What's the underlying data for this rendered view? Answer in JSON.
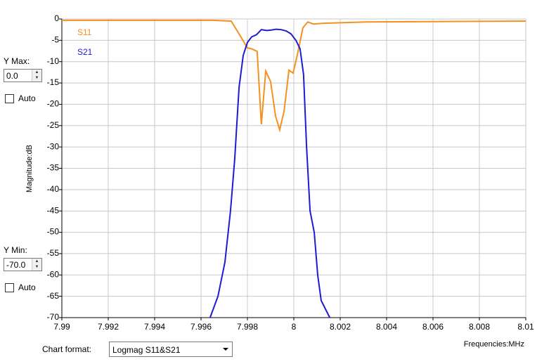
{
  "controls": {
    "ymax_label": "Y Max:",
    "ymax_value": "0.0",
    "ymax_auto": "Auto",
    "ymin_label": "Y Min:",
    "ymin_value": "-70.0",
    "ymin_auto": "Auto",
    "format_label": "Chart format:",
    "format_value": "Logmag S11&S21"
  },
  "chart_data": {
    "type": "line",
    "ylabel": "Magnitude:dB",
    "xlabel": "Frequencies:MHz",
    "xlim": [
      7.99,
      8.01
    ],
    "xticks": [
      7.99,
      7.992,
      7.994,
      7.996,
      7.998,
      8,
      8.002,
      8.004,
      8.006,
      8.008,
      8.01
    ],
    "ylim": [
      -70,
      0
    ],
    "yticks": [
      0,
      -5,
      -10,
      -15,
      -20,
      -25,
      -30,
      -35,
      -40,
      -45,
      -50,
      -55,
      -60,
      -65,
      -70
    ],
    "grid": true,
    "legend": "upper left",
    "series": [
      {
        "name": "S11",
        "color": "#f5901e",
        "x": [
          7.99,
          7.9965,
          7.9973,
          7.99764,
          7.998,
          7.99818,
          7.99842,
          7.9986,
          7.99879,
          7.999,
          7.99921,
          7.99939,
          7.99958,
          7.99979,
          7.99997,
          8.00018,
          8.00039,
          8.0006,
          8.00085,
          8.00127,
          8.00309,
          8.01
        ],
        "values": [
          -0.3,
          -0.3,
          -0.5,
          -3.5,
          -6.8,
          -7,
          -7.6,
          -24.7,
          -12.2,
          -14.7,
          -22.7,
          -26,
          -21.6,
          -12,
          -12.7,
          -7.7,
          -2.1,
          -0.7,
          -1.2,
          -1,
          -0.7,
          -0.5
        ]
      },
      {
        "name": "S21",
        "color": "#1c1cd4",
        "x": [
          7.99639,
          7.99673,
          7.99703,
          7.99727,
          7.99745,
          7.99764,
          7.99782,
          7.998,
          7.99818,
          7.99839,
          7.9986,
          7.99882,
          7.99903,
          7.99924,
          7.99945,
          7.99967,
          7.99988,
          8.00009,
          8.00027,
          8.00042,
          8.00055,
          8.0007,
          8.00088,
          8.00103,
          8.00118,
          8.00155
        ],
        "values": [
          -70,
          -65,
          -57,
          -45,
          -33,
          -16,
          -8.5,
          -5.5,
          -4.2,
          -3.7,
          -2.5,
          -2.7,
          -2.6,
          -2.4,
          -2.5,
          -2.8,
          -3.5,
          -5,
          -7,
          -13,
          -30,
          -45,
          -50,
          -60,
          -66,
          -70
        ]
      }
    ]
  }
}
